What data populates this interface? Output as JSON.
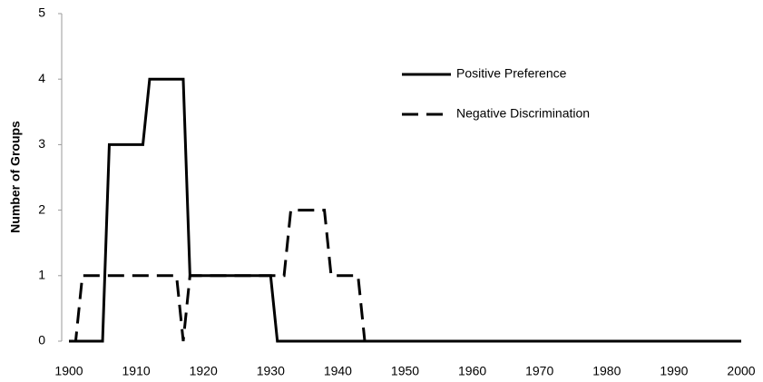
{
  "chart_data": {
    "type": "line",
    "y_label": "Number of Groups",
    "series": [
      {
        "name": "Positive Preference",
        "color": "#000000",
        "dash": false,
        "x": [
          1900,
          1905,
          1906,
          1911,
          1912,
          1917,
          1918,
          1930,
          1931,
          2000
        ],
        "values": [
          0,
          0,
          3,
          3,
          4,
          4,
          1,
          1,
          0,
          0
        ]
      },
      {
        "name": "Negative Discrimination",
        "color": "#000000",
        "dash": true,
        "x": [
          1900,
          1901,
          1902,
          1916,
          1917,
          1918,
          1932,
          1933,
          1938,
          1939,
          1943,
          1944,
          2000
        ],
        "values": [
          0,
          0,
          1,
          1,
          0,
          1,
          1,
          2,
          2,
          1,
          1,
          0,
          0
        ]
      }
    ],
    "xlim": [
      1900,
      2000
    ],
    "xticks": [
      1900,
      1910,
      1920,
      1930,
      1940,
      1950,
      1960,
      1970,
      1980,
      1990,
      2000
    ],
    "ylim": [
      0,
      5
    ],
    "yticks": [
      0,
      1,
      2,
      3,
      4,
      5
    ],
    "grid": false,
    "legend": "upper-center"
  }
}
